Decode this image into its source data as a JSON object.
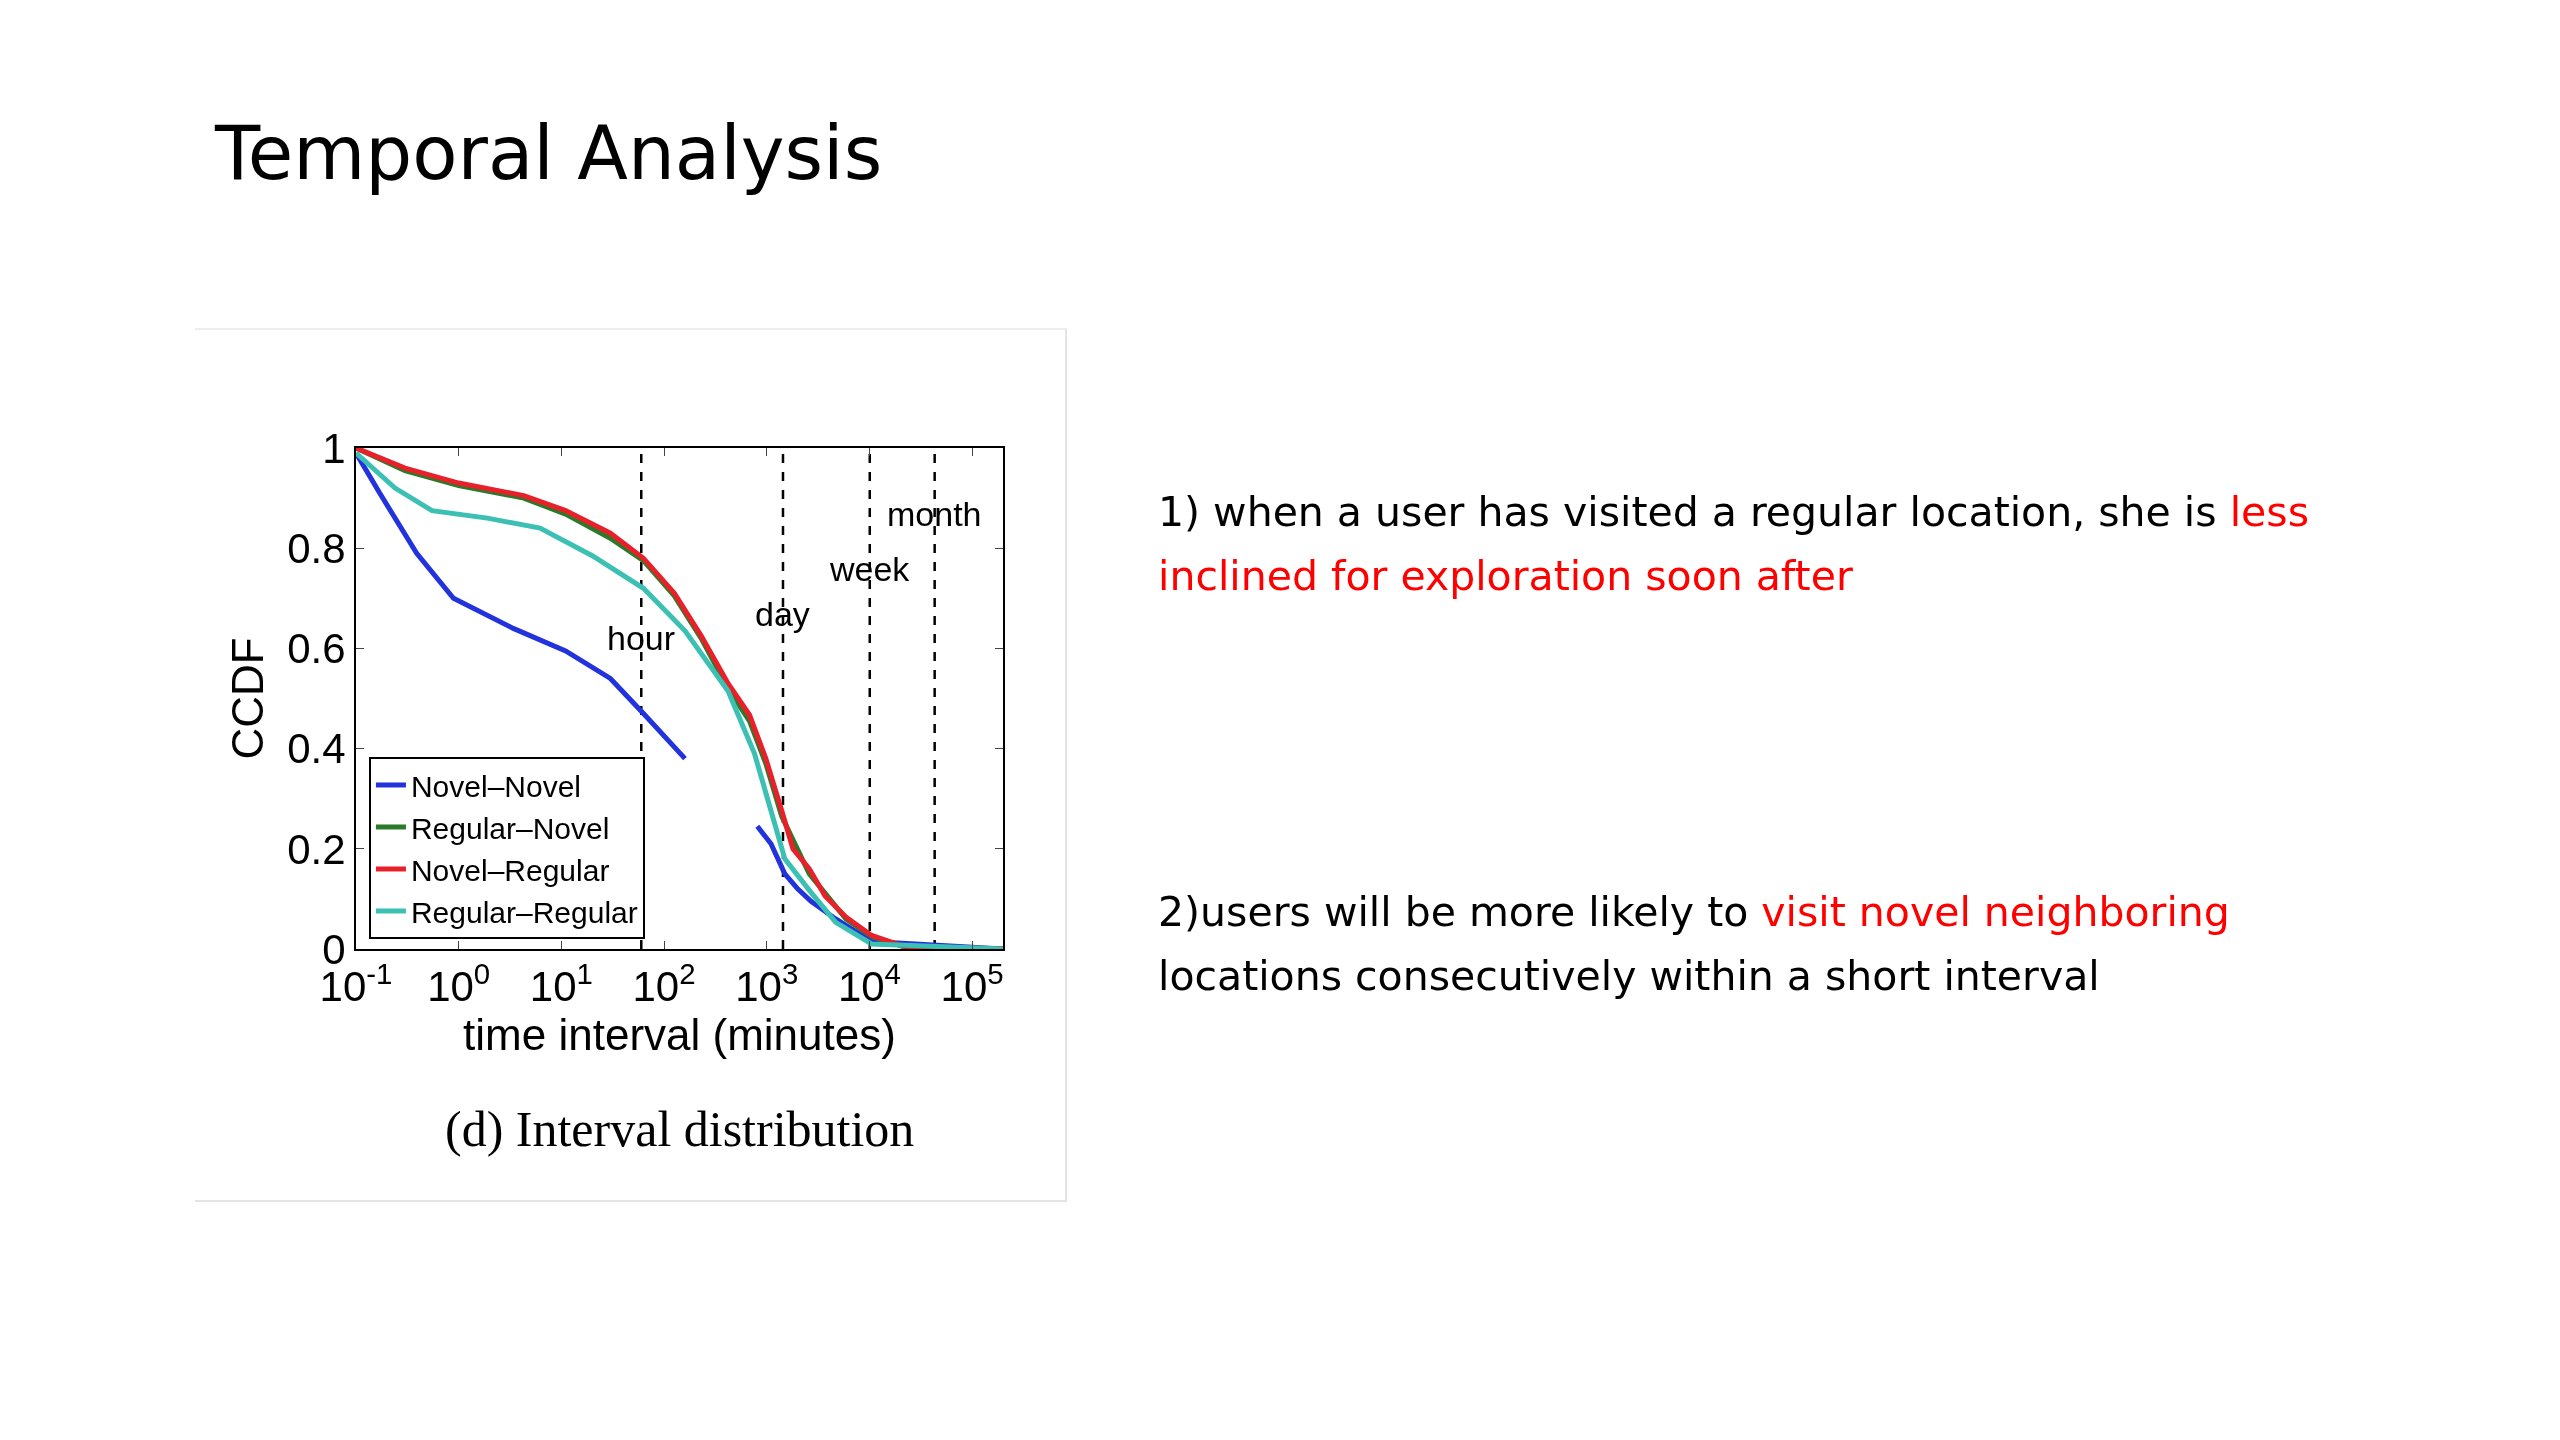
{
  "chart_data": {
    "type": "line",
    "title": "Temporal Analysis",
    "xlabel": "time interval (minutes)",
    "ylabel": "CCDF",
    "log": "x",
    "xlim": [
      0.1,
      200000
    ],
    "xticks": [
      {
        "value": 0.1,
        "label": "10$^{-1}$"
      },
      {
        "value": 1,
        "label": "10$^{0}$"
      },
      {
        "value": 10,
        "label": "10$^{1}$"
      },
      {
        "value": 100,
        "label": "10$^{2}$"
      },
      {
        "value": 1000,
        "label": "10$^{3}$"
      },
      {
        "value": 10000,
        "label": "10$^{4}$"
      },
      {
        "value": 100000,
        "label": "10$^{5}$"
      }
    ],
    "ylim": [
      0,
      1
    ],
    "yticks": [
      0,
      {
        "value": 0.2,
        "label": "0.2"
      },
      {
        "value": 0.4,
        "label": "0.4"
      },
      {
        "value": 0.6,
        "label": "0.6"
      },
      {
        "value": 0.8,
        "label": "0.8"
      },
      1
    ],
    "grid": false,
    "legend": "bottom left",
    "marker": "none",
    "line_style": "solid",
    "series": [
      {
        "name": "Novel–Novel",
        "color": "#2233dd",
        "x": [
          0.1,
          0.17,
          0.39,
          0.89,
          3.4,
          11,
          30,
          63,
          160,
          400,
          810,
          1100,
          1500,
          2000,
          2700,
          4700,
          10500,
          200000
        ],
        "values": [
          0.99,
          0.91,
          0.79,
          0.7,
          0.64,
          0.595,
          0.54,
          0.47,
          0.38,
          null,
          0.245,
          0.21,
          0.15,
          0.12,
          0.095,
          0.06,
          0.015,
          0
        ]
      },
      {
        "name": "Regular–Novel",
        "color": "#2a7a2a",
        "x": [
          0.1,
          0.3,
          1,
          4.3,
          11,
          30,
          63,
          126,
          230,
          420,
          680,
          980,
          1400,
          2600,
          5900,
          10500,
          22000,
          200000
        ],
        "values": [
          1,
          0.955,
          0.925,
          0.9,
          0.868,
          0.82,
          0.775,
          0.705,
          0.62,
          0.52,
          0.455,
          0.37,
          0.265,
          0.15,
          0.06,
          0.025,
          0.004,
          0
        ]
      },
      {
        "name": "Novel–Regular",
        "color": "#e8202a",
        "x": [
          0.1,
          0.3,
          1,
          4.3,
          11,
          30,
          63,
          126,
          230,
          420,
          680,
          980,
          1400,
          1800,
          2600,
          3700,
          5900,
          10500,
          22000,
          200000
        ],
        "values": [
          1,
          0.96,
          0.93,
          0.905,
          0.875,
          0.83,
          0.78,
          0.71,
          0.625,
          0.53,
          0.467,
          0.38,
          0.276,
          0.2,
          0.16,
          0.106,
          0.064,
          0.027,
          0.005,
          0
        ]
      },
      {
        "name": "Regular–Regular",
        "color": "#3cc0b4",
        "x": [
          0.1,
          0.24,
          0.55,
          1.9,
          6.2,
          20,
          63,
          160,
          420,
          760,
          1100,
          1500,
          2600,
          4700,
          10500,
          200000
        ],
        "values": [
          0.99,
          0.92,
          0.875,
          0.86,
          0.84,
          0.785,
          0.72,
          0.635,
          0.515,
          0.39,
          0.276,
          0.18,
          0.117,
          0.053,
          0.01,
          0
        ]
      }
    ],
    "ref_lines": [
      {
        "axis": "x",
        "value": 60,
        "label": "hour",
        "line_style": "dashed"
      },
      {
        "axis": "x",
        "value": 1440,
        "label": "day",
        "line_style": "dashed"
      },
      {
        "axis": "x",
        "value": 10080,
        "label": "week",
        "line_style": "dashed"
      },
      {
        "axis": "x",
        "value": 43200,
        "label": "month",
        "line_style": "dashed"
      }
    ],
    "annotations": [
      "(d) Interval distribution",
      "1) when a user has visited a regular location, she is ",
      "less inclined for exploration soon after",
      "2)users will be more likely to ",
      "visit novel neighboring",
      "locations consecutively within a short interval"
    ]
  }
}
